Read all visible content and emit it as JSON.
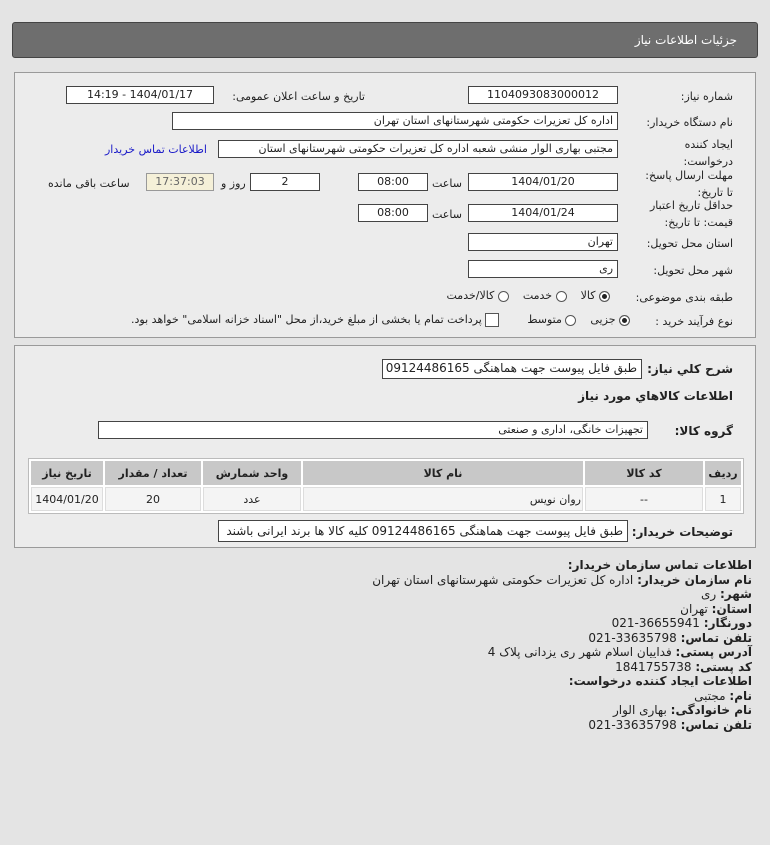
{
  "header": {
    "title": "جزئیات اطلاعات نیاز"
  },
  "form": {
    "need_number_label": "شماره نیاز:",
    "need_number": "1104093083000012",
    "announce_label": "تاریخ و ساعت اعلان عمومی:",
    "announce_value": "1404/01/17 - 14:19",
    "buyer_org_label": "نام دستگاه خریدار:",
    "buyer_org": "اداره کل تعزیرات حکومتی شهرستانهای استان تهران",
    "creator_label_1": "ایجاد کننده",
    "creator_label_2": "درخواست:",
    "creator": "مجتبی بهاری الوار منشی شعبه اداره کل تعزیرات حکومتی شهرستانهای استان",
    "contact_link": "اطلاعات تماس خریدار",
    "deadline_label_1": "مهلت ارسال پاسخ:",
    "deadline_label_2": "تا تاریخ:",
    "deadline_date": "1404/01/20",
    "time_label": "ساعت",
    "deadline_time": "08:00",
    "days": "2",
    "days_label": "روز و",
    "remaining": "17:37:03",
    "remaining_label": "ساعت باقی مانده",
    "validity_label_1": "حداقل تاریخ اعتبار",
    "validity_label_2": "قیمت: تا تاریخ:",
    "validity_date": "1404/01/24",
    "validity_time": "08:00",
    "province_label": "استان محل تحویل:",
    "province": "تهران",
    "city_label": "شهر محل تحویل:",
    "city": "ری",
    "category_label": "طبقه بندی موضوعی:",
    "category_options": [
      "کالا",
      "خدمت",
      "کالا/خدمت"
    ],
    "category_selected": "کالا",
    "process_label": "نوع فرآیند خرید :",
    "process_options": [
      "جزیی",
      "متوسط"
    ],
    "process_selected": "جزیی",
    "payment_note": "پرداخت تمام یا بخشی از مبلغ خرید،از محل \"اسناد خزانه اسلامی\" خواهد بود."
  },
  "details": {
    "desc_label": "شرح کلي نياز:",
    "desc": "طبق فایل پیوست جهت هماهنگی 09124486165",
    "goods_title": "اطلاعات کالاهاي مورد نياز",
    "group_label": "گروه کالا:",
    "group": "تجهیزات خانگی، اداری و صنعتی",
    "table": {
      "headers": [
        "ردیف",
        "کد کالا",
        "نام کالا",
        "واحد شمارش",
        "تعداد / مقدار",
        "تاریخ نیاز"
      ],
      "rows": [
        [
          "1",
          "--",
          "روان نویس",
          "عدد",
          "20",
          "1404/01/20"
        ]
      ]
    },
    "notes_label": "توضیحات خریدار:",
    "notes": "طبق فایل پیوست جهت هماهنگی 09124486165 کلیه کالا ها برند ایرانی باشند"
  },
  "contact": {
    "title": "اطلاعات تماس سازمان خریدار:",
    "org_label": "نام سازمان خریدار:",
    "org": "اداره کل تعزیرات حکومتی شهرستانهای استان تهران",
    "city_label": "شهر:",
    "city": "ری",
    "province_label": "استان:",
    "province": "تهران",
    "fax_label": "دورنگار:",
    "fax": "36655941-021",
    "phone_label": "تلفن تماس:",
    "phone": "33635798-021",
    "address_label": "آدرس پستی:",
    "address": "فداییان اسلام شهر ری یزدانی پلاک 4",
    "postal_label": "کد پستی:",
    "postal": "1841755738",
    "creator_title": "اطلاعات ایجاد کننده درخواست:",
    "name_label": "نام:",
    "name": "مجتبی",
    "family_label": "نام خانوادگی:",
    "family": "بهاری الوار",
    "creator_phone_label": "تلفن تماس:",
    "creator_phone": "33635798-021"
  }
}
